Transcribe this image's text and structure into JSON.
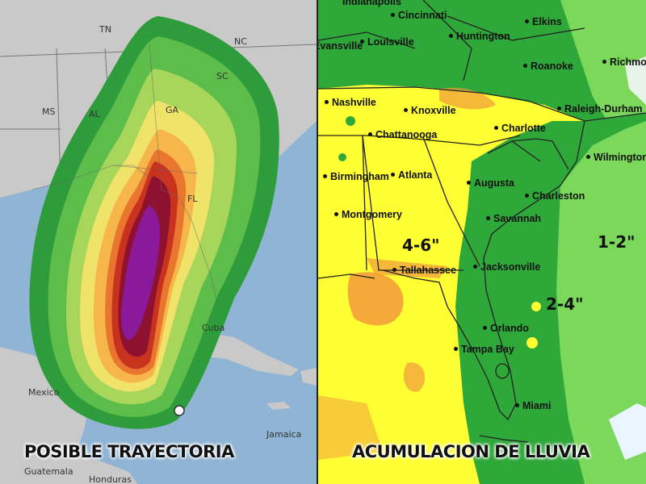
{
  "left_panel": {
    "caption": "POSIBLE TRAYECTORIA",
    "region_labels": {
      "tn": "TN",
      "nc": "NC",
      "ms": "MS",
      "al": "AL",
      "ga": "GA",
      "sc": "SC",
      "fl": "FL",
      "cuba": "Cuba",
      "mexico": "Mexico",
      "jamaica": "Jamaica",
      "guatemala": "Guatemala",
      "honduras": "Honduras"
    },
    "colors": {
      "water": "#8fb4d4",
      "land": "#c9c9c9",
      "probability_bands": [
        "#2e9c3a",
        "#5cbd4a",
        "#a8d65a",
        "#f0e36a",
        "#f6b64a",
        "#e8762e",
        "#c8321f",
        "#8e1230",
        "#8b1a9a"
      ]
    }
  },
  "right_panel": {
    "caption": "ACUMULACION DE LLUVIA",
    "cities": {
      "indianapolis": "Indianapolis",
      "cincinnati": "Cincinnati",
      "elkins": "Elkins",
      "evansville": "Evansville",
      "louisville": "Louisville",
      "huntington": "Huntington",
      "roanoke": "Roanoke",
      "richmond": "Richmond",
      "nashville": "Nashville",
      "knoxville": "Knoxville",
      "raleigh_durham": "Raleigh-Durham",
      "chattanooga": "Chattanooga",
      "charlotte": "Charlotte",
      "wilmington": "Wilmington",
      "birmingham": "Birmingham",
      "atlanta": "Atlanta",
      "augusta": "Augusta",
      "charleston": "Charleston",
      "montgomery": "Montgomery",
      "savannah": "Savannah",
      "tallahassee": "Tallahassee",
      "jacksonville": "Jacksonville",
      "orlando": "Orlando",
      "tampa_bay": "Tampa Bay",
      "miami": "Miami"
    },
    "amounts": {
      "heavy": "4-6\"",
      "medium": "2-4\"",
      "light": "1-2\""
    },
    "colors": {
      "heavy": "#ffff33",
      "medium": "#2fa83a",
      "light": "#7bd85a",
      "extreme": "#f29a3a"
    }
  }
}
